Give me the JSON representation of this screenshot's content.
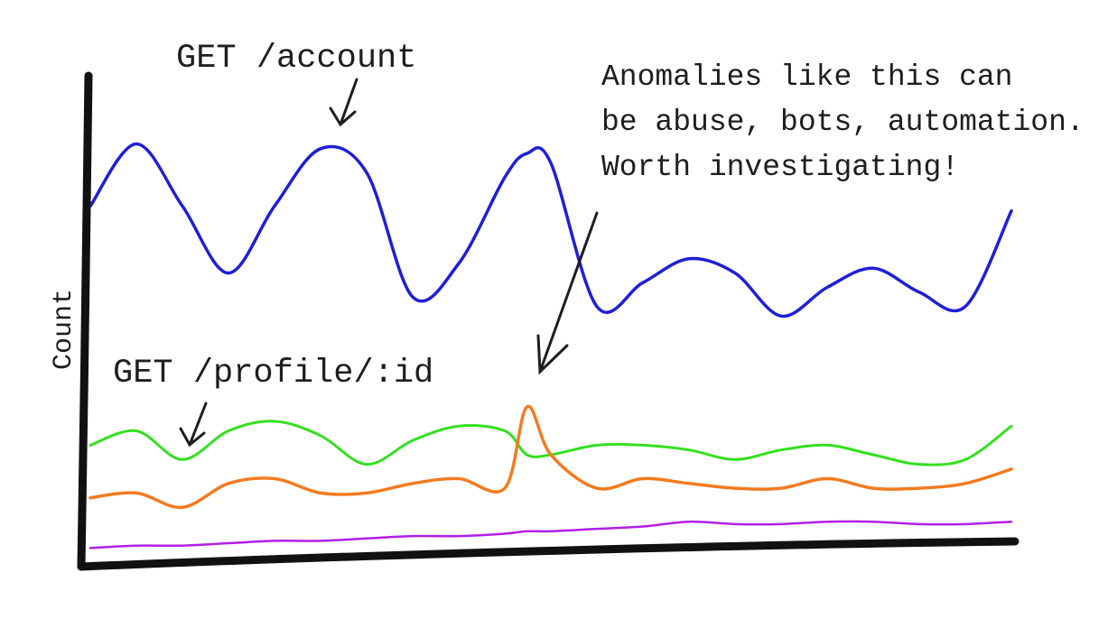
{
  "chart_data": {
    "type": "line",
    "y_label": "Count",
    "xlim": [
      0,
      100
    ],
    "ylim": [
      0,
      100
    ],
    "x": [
      0,
      5,
      10,
      15,
      20,
      25,
      30,
      35,
      40,
      45,
      47.4,
      50,
      55,
      60,
      65,
      70,
      75,
      80,
      85,
      90,
      95,
      100
    ],
    "series": [
      {
        "color": "#1f1fd6",
        "values": [
          72,
          85,
          72,
          58,
          72,
          84,
          79,
          53,
          60,
          78,
          83,
          81,
          51,
          56,
          61,
          58,
          49,
          55,
          59,
          54,
          51,
          71
        ]
      },
      {
        "color": "#33e01f",
        "values": [
          22,
          25,
          19,
          25,
          27,
          24,
          18,
          23,
          26,
          25,
          20,
          20,
          22,
          22,
          21,
          19,
          21,
          22,
          20,
          18,
          19,
          26
        ]
      },
      {
        "color": "#f47b20",
        "values": [
          11,
          12,
          9,
          14,
          15,
          12,
          12,
          14,
          15,
          13,
          30,
          20,
          13,
          15,
          14,
          13,
          13,
          15,
          13,
          13,
          14,
          17
        ]
      },
      {
        "color": "#b31ee6",
        "values": [
          0.5,
          1,
          1,
          1.5,
          2,
          2,
          2.5,
          3,
          3,
          3.5,
          4,
          4,
          4.5,
          5,
          6,
          5.5,
          5.5,
          6,
          6,
          5.5,
          5.5,
          6
        ]
      }
    ],
    "annotations": [
      {
        "text": "GET /account"
      },
      {
        "text": "GET /profile/:id"
      },
      {
        "lines": [
          "Anomalies like this can",
          "be abuse, bots, automation.",
          "Worth investigating!"
        ]
      }
    ]
  }
}
